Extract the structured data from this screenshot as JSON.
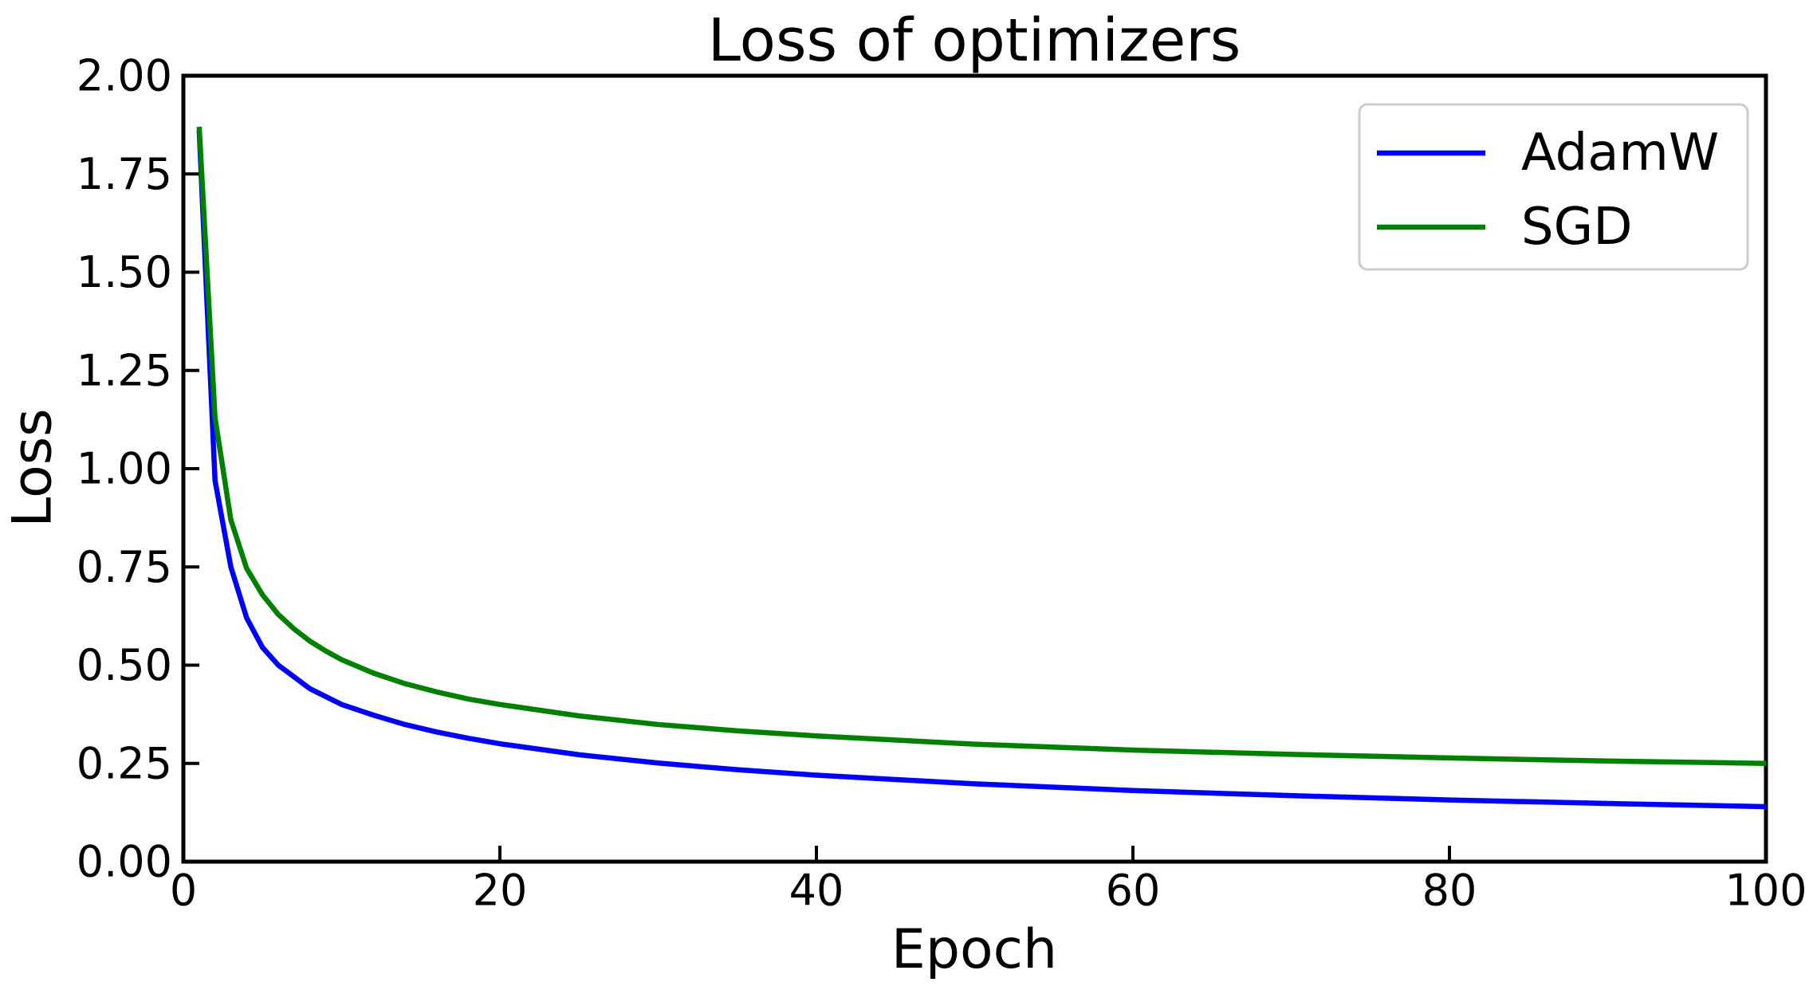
{
  "figure": {
    "background": "#ffffff",
    "frame_color": "#000000"
  },
  "chart_data": {
    "type": "line",
    "title": "Loss of optimizers",
    "xlabel": "Epoch",
    "ylabel": "Loss",
    "xlim": [
      0,
      100
    ],
    "ylim": [
      0.0,
      2.0
    ],
    "grid": false,
    "legend_position": "upper right",
    "x_ticks": {
      "values": [
        0,
        20,
        40,
        60,
        80,
        100
      ],
      "labels": [
        "0",
        "20",
        "40",
        "60",
        "80",
        "100"
      ]
    },
    "y_ticks": {
      "values": [
        0.0,
        0.25,
        0.5,
        0.75,
        1.0,
        1.25,
        1.5,
        1.75,
        2.0
      ],
      "labels": [
        "0.00",
        "0.25",
        "0.50",
        "0.75",
        "1.00",
        "1.25",
        "1.50",
        "1.75",
        "2.00"
      ]
    },
    "x": [
      1,
      2,
      3,
      4,
      5,
      6,
      7,
      8,
      9,
      10,
      12,
      14,
      16,
      18,
      20,
      25,
      30,
      35,
      40,
      50,
      60,
      70,
      80,
      90,
      100
    ],
    "series": [
      {
        "name": "AdamW",
        "color": "#0000ff",
        "values": [
          1.86,
          0.97,
          0.75,
          0.62,
          0.545,
          0.5,
          0.47,
          0.44,
          0.42,
          0.4,
          0.373,
          0.349,
          0.33,
          0.314,
          0.3,
          0.272,
          0.251,
          0.234,
          0.22,
          0.198,
          0.181,
          0.168,
          0.157,
          0.148,
          0.14
        ]
      },
      {
        "name": "SGD",
        "color": "#008000",
        "values": [
          1.87,
          1.13,
          0.87,
          0.746,
          0.679,
          0.629,
          0.592,
          0.561,
          0.536,
          0.514,
          0.48,
          0.453,
          0.432,
          0.414,
          0.4,
          0.371,
          0.349,
          0.333,
          0.32,
          0.299,
          0.284,
          0.273,
          0.264,
          0.256,
          0.25
        ]
      }
    ]
  },
  "legend": {
    "border_color": "#cccccc",
    "background": "#ffffff"
  }
}
